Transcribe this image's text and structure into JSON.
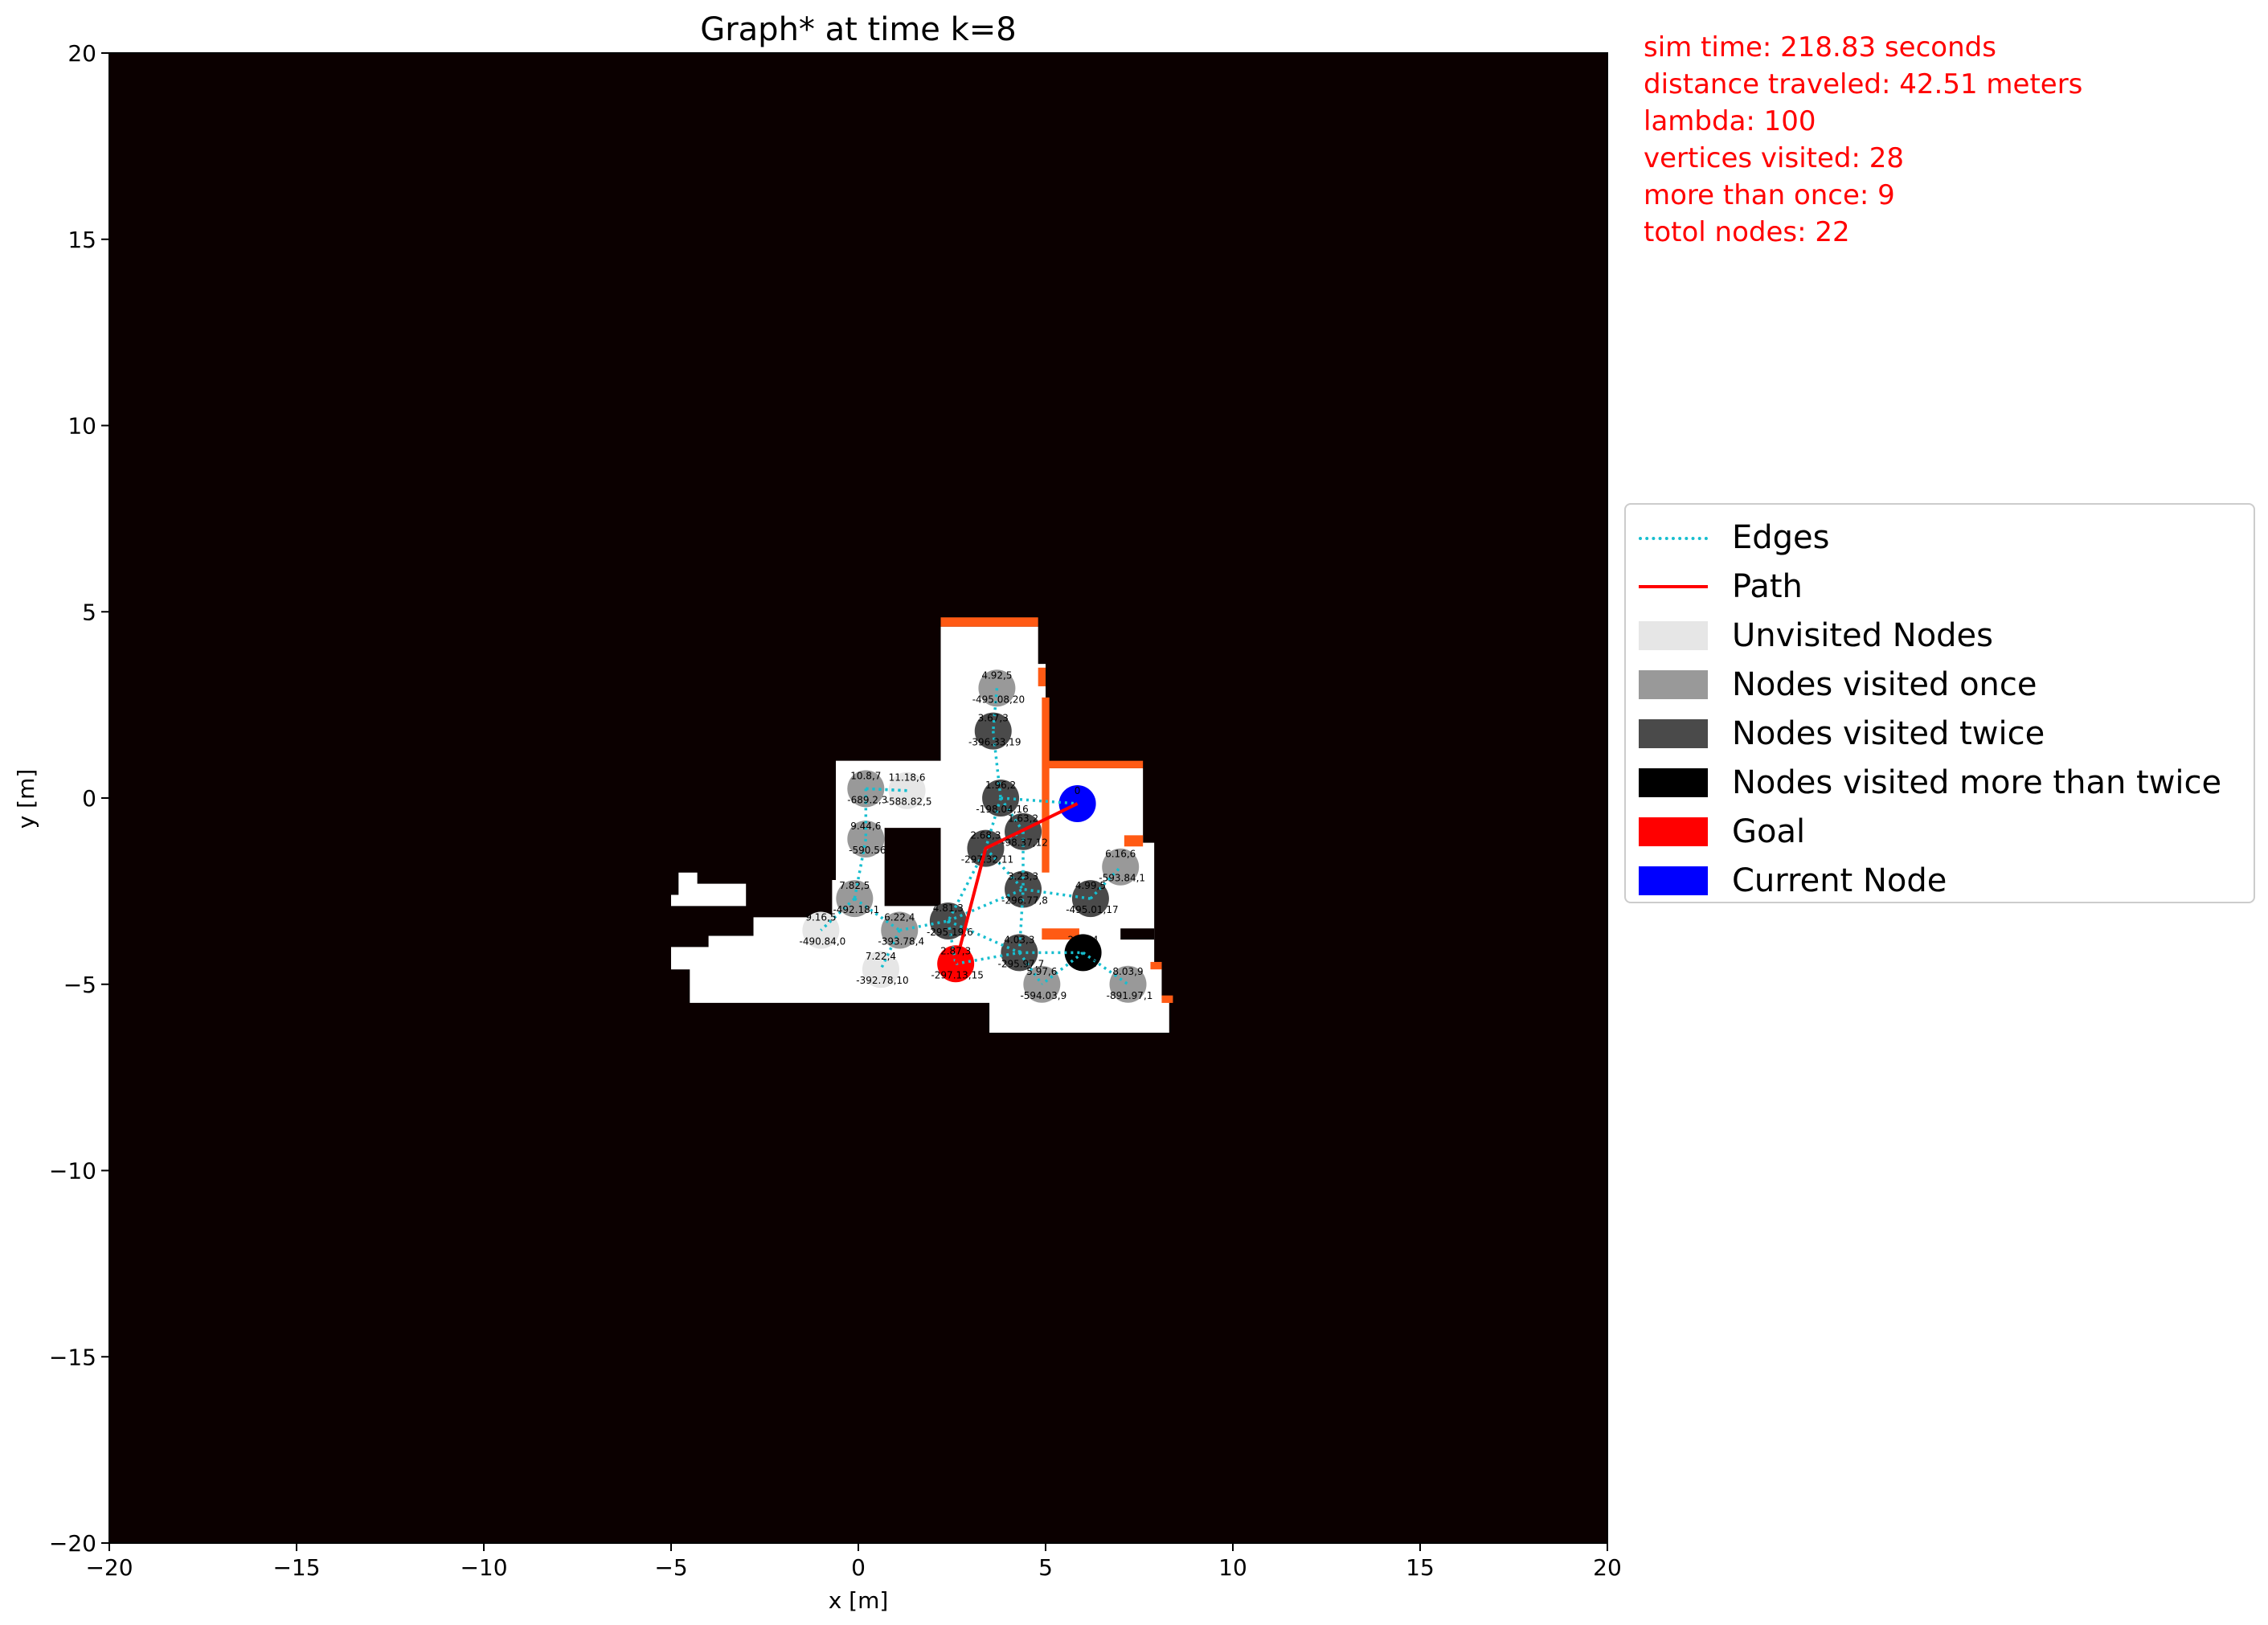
{
  "title": "Graph* at time k=8",
  "chart_data": {
    "type": "scatter",
    "title": "Graph* at time k=8",
    "xlabel": "x [m]",
    "ylabel": "y [m]",
    "xlim": [
      -20,
      20
    ],
    "ylim": [
      -20,
      20
    ],
    "xticks": [
      -20,
      -15,
      -10,
      -5,
      0,
      5,
      10,
      15,
      20
    ],
    "yticks": [
      -20,
      -15,
      -10,
      -5,
      0,
      5,
      10,
      15,
      20
    ],
    "background_color": "#0b0000",
    "free_space_color": "#ffffff",
    "obstacle_color": "#ff5a14",
    "free_space_polygons": [
      [
        [
          2.2,
          4.6
        ],
        [
          4.8,
          4.6
        ],
        [
          4.8,
          3.6
        ],
        [
          5.0,
          3.6
        ],
        [
          5.0,
          0.8
        ],
        [
          7.6,
          0.8
        ],
        [
          7.6,
          -1.2
        ],
        [
          7.9,
          -1.2
        ],
        [
          7.9,
          -4.4
        ],
        [
          8.1,
          -4.4
        ],
        [
          8.1,
          -5.4
        ],
        [
          8.3,
          -5.4
        ],
        [
          8.3,
          -6.3
        ],
        [
          3.5,
          -6.3
        ],
        [
          3.5,
          -5.5
        ],
        [
          -4.5,
          -5.5
        ],
        [
          -4.5,
          -4.6
        ],
        [
          -5.0,
          -4.6
        ],
        [
          -5.0,
          -4.0
        ],
        [
          -4.0,
          -4.0
        ],
        [
          -4.0,
          -3.7
        ],
        [
          -2.8,
          -3.7
        ],
        [
          -2.8,
          -3.2
        ],
        [
          -0.7,
          -3.2
        ],
        [
          -0.7,
          -2.2
        ],
        [
          -0.6,
          -2.2
        ],
        [
          -0.6,
          1.0
        ],
        [
          2.2,
          1.0
        ]
      ],
      [
        [
          -4.8,
          -2.0
        ],
        [
          -4.3,
          -2.0
        ],
        [
          -4.3,
          -2.3
        ],
        [
          -3.0,
          -2.3
        ],
        [
          -3.0,
          -2.9
        ],
        [
          -5.0,
          -2.9
        ],
        [
          -5.0,
          -2.6
        ],
        [
          -4.8,
          -2.6
        ]
      ]
    ],
    "hole_polygons": [
      [
        [
          0.7,
          -0.8
        ],
        [
          2.2,
          -0.8
        ],
        [
          2.2,
          -2.9
        ],
        [
          0.7,
          -2.9
        ]
      ],
      [
        [
          7.0,
          -3.5
        ],
        [
          7.9,
          -3.5
        ],
        [
          7.9,
          -3.8
        ],
        [
          7.0,
          -3.8
        ]
      ]
    ],
    "obstacle_rects": [
      [
        [
          2.2,
          4.85
        ],
        [
          4.8,
          4.6
        ]
      ],
      [
        [
          4.8,
          3.5
        ],
        [
          5.0,
          3.0
        ]
      ],
      [
        [
          4.9,
          2.7
        ],
        [
          5.1,
          -2.0
        ]
      ],
      [
        [
          5.0,
          1.0
        ],
        [
          7.6,
          0.8
        ]
      ],
      [
        [
          7.1,
          -1.0
        ],
        [
          7.6,
          -1.3
        ]
      ],
      [
        [
          4.9,
          -3.5
        ],
        [
          5.9,
          -3.8
        ]
      ],
      [
        [
          7.8,
          -4.4
        ],
        [
          8.1,
          -4.6
        ]
      ],
      [
        [
          8.1,
          -5.3
        ],
        [
          8.4,
          -5.5
        ]
      ]
    ],
    "nodes": [
      {
        "x": 3.7,
        "y": 2.95,
        "label": "4.92,5",
        "cost": "-495.08,20",
        "visits": 1
      },
      {
        "x": 3.6,
        "y": 1.8,
        "label": "3.67,3",
        "cost": "-396.33,19",
        "visits": 2
      },
      {
        "x": 0.2,
        "y": 0.25,
        "label": "10.8,7",
        "cost": "-689.2,3",
        "visits": 1
      },
      {
        "x": 1.3,
        "y": 0.2,
        "label": "11.18,6",
        "cost": "-588.82,5",
        "visits": 0
      },
      {
        "x": 3.8,
        "y": 0.0,
        "label": "1.96,2",
        "cost": "-198.04,16",
        "visits": 2
      },
      {
        "x": 5.85,
        "y": -0.15,
        "label": "0",
        "cost": "",
        "visits": 2,
        "current": true
      },
      {
        "x": 0.2,
        "y": -1.1,
        "label": "9.44,6",
        "cost": "-590.56",
        "visits": 1
      },
      {
        "x": 4.4,
        "y": -0.9,
        "label": "1.63,2",
        "cost": "-98.37,12",
        "visits": 2
      },
      {
        "x": 3.4,
        "y": -1.35,
        "label": "2.68,3",
        "cost": "-297.32,11",
        "visits": 2
      },
      {
        "x": 7.0,
        "y": -1.85,
        "label": "6.16,6",
        "cost": "-593.84,1",
        "visits": 1
      },
      {
        "x": -0.1,
        "y": -2.7,
        "label": "7.82,5",
        "cost": "-492.18,1",
        "visits": 1
      },
      {
        "x": 4.4,
        "y": -2.45,
        "label": "3.23,3",
        "cost": "-296.77,8",
        "visits": 2
      },
      {
        "x": 6.2,
        "y": -2.7,
        "label": "4.99,5",
        "cost": "-495.01,17",
        "visits": 2
      },
      {
        "x": -1.0,
        "y": -3.55,
        "label": "9.16,5",
        "cost": "-490.84,0",
        "visits": 0
      },
      {
        "x": 1.1,
        "y": -3.55,
        "label": "6.22,4",
        "cost": "-393.78,4",
        "visits": 1
      },
      {
        "x": 2.4,
        "y": -3.3,
        "label": "4.81,3",
        "cost": "-295.19,6",
        "visits": 2
      },
      {
        "x": 4.3,
        "y": -4.15,
        "label": "4.03,3",
        "cost": "-295.97,7",
        "visits": 2
      },
      {
        "x": 6.0,
        "y": -4.15,
        "label": "2.87,4",
        "cost": "-7,13",
        "visits": 3
      },
      {
        "x": 0.6,
        "y": -4.6,
        "label": "7.22,4",
        "cost": "-392.78,10",
        "visits": 0
      },
      {
        "x": 2.6,
        "y": -4.45,
        "label": "2.87,3",
        "cost": "-297.13,15",
        "visits": 2,
        "goal": true
      },
      {
        "x": 4.9,
        "y": -5.0,
        "label": "5.97,6",
        "cost": "-594.03,9",
        "visits": 1
      },
      {
        "x": 7.2,
        "y": -5.0,
        "label": "8.03,9",
        "cost": "-891.97,1",
        "visits": 1
      }
    ],
    "edges": [
      [
        0,
        1
      ],
      [
        1,
        4
      ],
      [
        4,
        5
      ],
      [
        4,
        7
      ],
      [
        4,
        8
      ],
      [
        7,
        8
      ],
      [
        7,
        11
      ],
      [
        8,
        11
      ],
      [
        8,
        15
      ],
      [
        2,
        3
      ],
      [
        2,
        6
      ],
      [
        6,
        10
      ],
      [
        10,
        13
      ],
      [
        10,
        14
      ],
      [
        14,
        15
      ],
      [
        15,
        19
      ],
      [
        15,
        11
      ],
      [
        15,
        16
      ],
      [
        16,
        11
      ],
      [
        16,
        17
      ],
      [
        16,
        20
      ],
      [
        17,
        20
      ],
      [
        17,
        21
      ],
      [
        12,
        9
      ],
      [
        12,
        11
      ],
      [
        14,
        18
      ],
      [
        19,
        16
      ],
      [
        3,
        2
      ]
    ],
    "path": [
      [
        5.85,
        -0.15
      ],
      [
        3.4,
        -1.35
      ],
      [
        2.6,
        -4.45
      ]
    ],
    "legend": {
      "position": "center-right",
      "entries": [
        {
          "label": "Edges",
          "style": "dotted-line",
          "color": "#17becf"
        },
        {
          "label": "Path",
          "style": "solid-line",
          "color": "#ff0000"
        },
        {
          "label": "Unvisited Nodes",
          "style": "patch",
          "color": "#e6e6e6"
        },
        {
          "label": "Nodes visited once",
          "style": "patch",
          "color": "#999999"
        },
        {
          "label": "Nodes visited twice",
          "style": "patch",
          "color": "#4a4a4a"
        },
        {
          "label": "Nodes visited more than twice",
          "style": "patch",
          "color": "#000000"
        },
        {
          "label": "Goal",
          "style": "patch",
          "color": "#ff0000"
        },
        {
          "label": "Current Node",
          "style": "patch",
          "color": "#0000ff"
        }
      ]
    }
  },
  "stats": {
    "sim_time": "sim time: 218.83 seconds",
    "distance": "distance traveled: 42.51 meters",
    "lambda": "lambda: 100",
    "vertices": "vertices visited: 28",
    "more_than_once": "more than once: 9",
    "total_nodes": "totol nodes: 22"
  }
}
